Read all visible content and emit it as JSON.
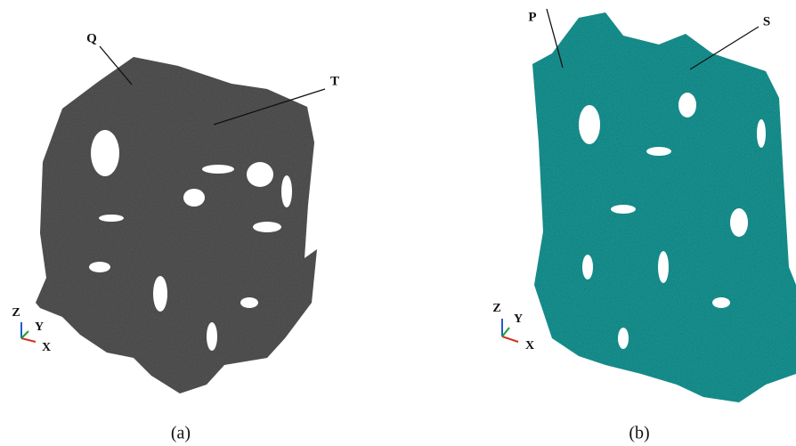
{
  "panels": [
    {
      "annotations": [
        "Q",
        "T"
      ],
      "axes": [
        "Z",
        "Y",
        "X"
      ],
      "caption": "(a)"
    },
    {
      "annotations": [
        "P",
        "S"
      ],
      "axes": [
        "Z",
        "Y",
        "X"
      ],
      "caption": "(b)"
    }
  ]
}
